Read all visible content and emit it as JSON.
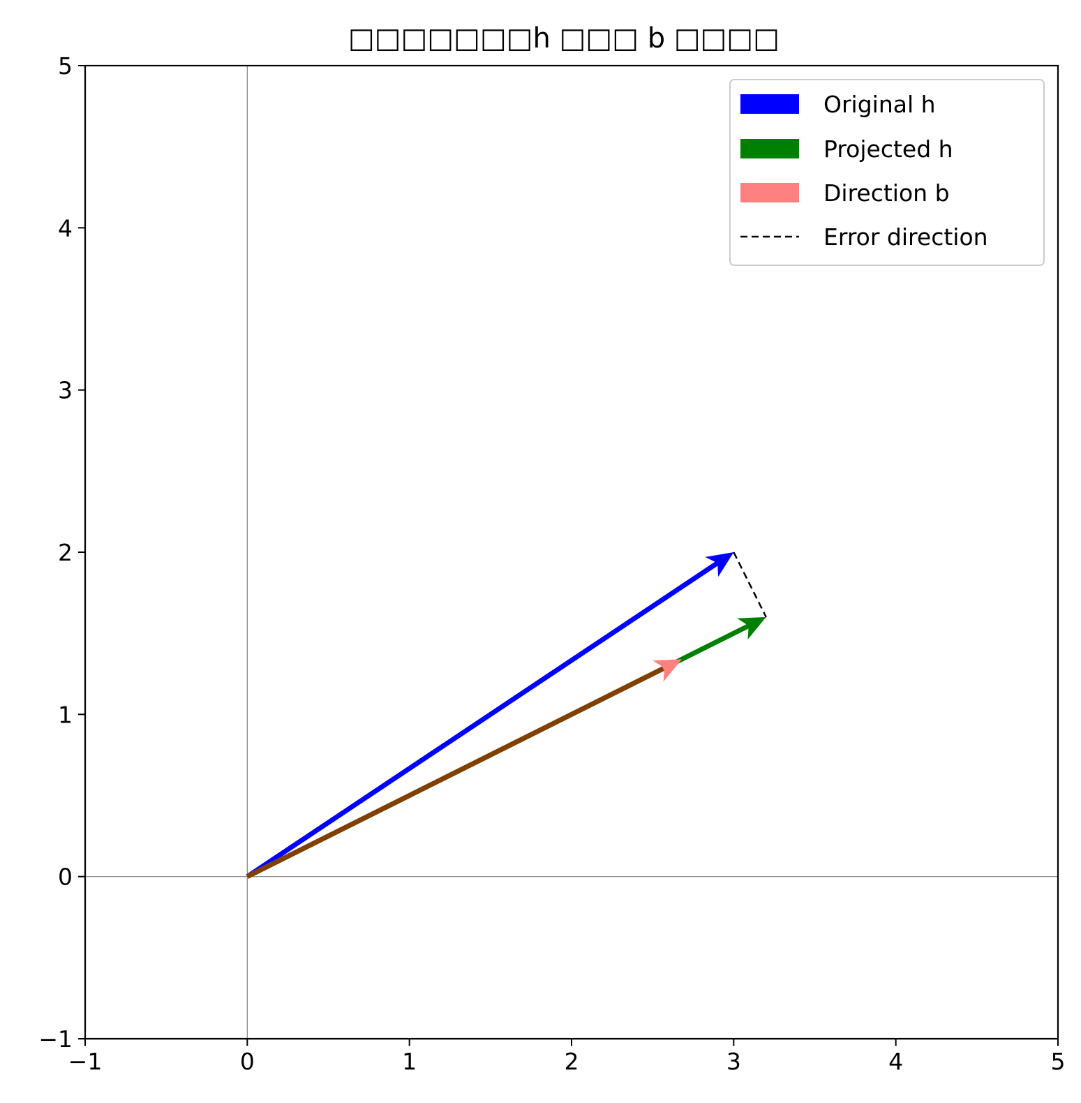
{
  "chart_data": {
    "type": "vector",
    "title": "□□□□□□□h □□□ b □□□□",
    "xlim": [
      -1,
      5
    ],
    "ylim": [
      -1,
      5
    ],
    "xticks": [
      -1,
      0,
      1,
      2,
      3,
      4,
      5
    ],
    "yticks": [
      -1,
      0,
      1,
      2,
      3,
      4,
      5
    ],
    "xtick_labels": [
      "−1",
      "0",
      "1",
      "2",
      "3",
      "4",
      "5"
    ],
    "ytick_labels": [
      "−1",
      "0",
      "1",
      "2",
      "3",
      "4",
      "5"
    ],
    "grid": false,
    "reference_lines": {
      "x": 0,
      "y": 0,
      "color": "#808080"
    },
    "legend_position": "upper right",
    "series": [
      {
        "name": "Original h",
        "type": "arrow",
        "start": [
          0,
          0
        ],
        "end": [
          3,
          2
        ],
        "color": "#0000ff"
      },
      {
        "name": "Projected h",
        "type": "arrow",
        "start": [
          0,
          0
        ],
        "end": [
          3.2,
          1.6
        ],
        "color": "#008000"
      },
      {
        "name": "Direction b",
        "type": "arrow",
        "start": [
          0,
          0
        ],
        "end": [
          2.68,
          1.34
        ],
        "color": "#ff8080"
      },
      {
        "name": "Error direction",
        "type": "dashed-line",
        "start": [
          3,
          2
        ],
        "end": [
          3.2,
          1.6
        ],
        "color": "#000000"
      }
    ],
    "overlap_color": "#804000"
  }
}
